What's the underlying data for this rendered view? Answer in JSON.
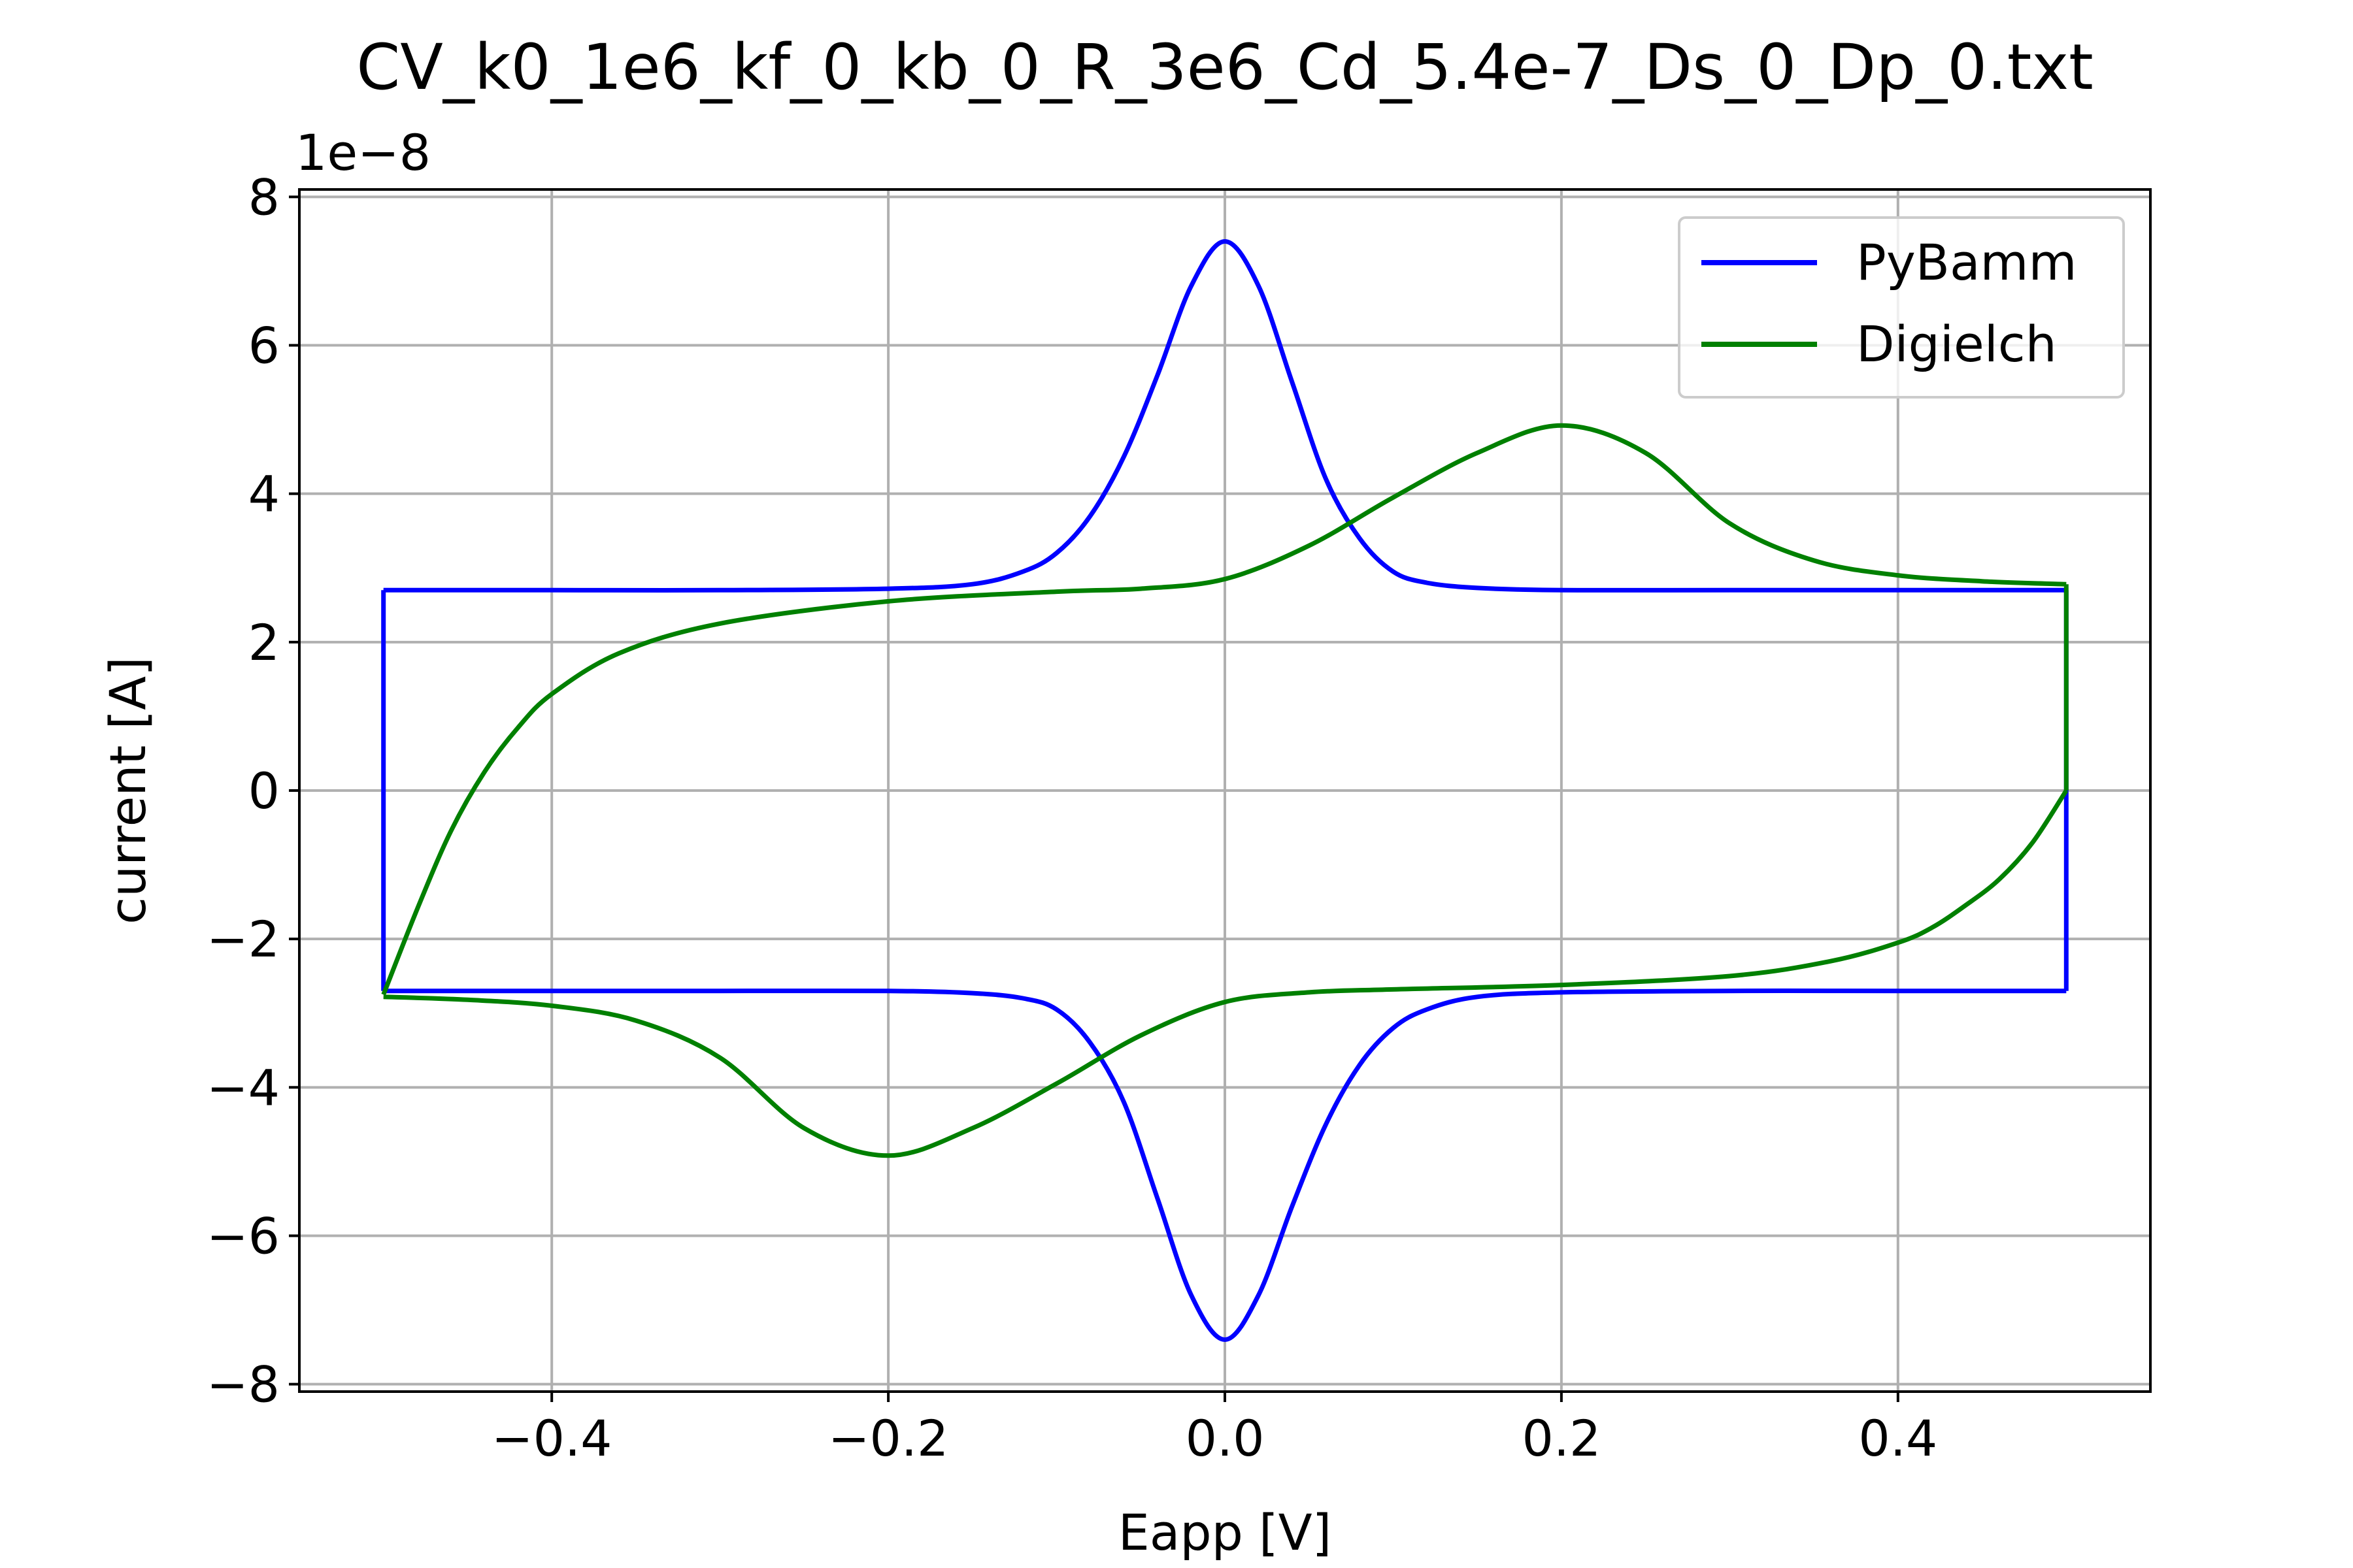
{
  "chart_data": {
    "type": "line",
    "title": "CV_k0_1e6_kf_0_kb_0_R_3e6_Cd_5.4e-7_Ds_0_Dp_0.txt",
    "xlabel": "Eapp [V]",
    "ylabel": "current [A]",
    "y_offset_label": "1e−8",
    "y_scale": 1e-08,
    "xlim": [
      -0.55,
      0.55
    ],
    "ylim": [
      -8.1,
      8.1
    ],
    "xticks": [
      -0.4,
      -0.2,
      0.0,
      0.2,
      0.4
    ],
    "xtick_labels": [
      "−0.4",
      "−0.2",
      "0.0",
      "0.2",
      "0.4"
    ],
    "yticks": [
      -8,
      -6,
      -4,
      -2,
      0,
      2,
      4,
      6,
      8
    ],
    "ytick_labels": [
      "−8",
      "−6",
      "−4",
      "−2",
      "0",
      "2",
      "4",
      "6",
      "8"
    ],
    "grid": true,
    "legend_position": "upper right",
    "series": [
      {
        "name": "PyBamm",
        "color": "#0000ff",
        "x": [
          -0.5,
          -0.5,
          -0.4,
          -0.3,
          -0.2,
          -0.15,
          -0.12,
          -0.1,
          -0.08,
          -0.06,
          -0.04,
          -0.02,
          0.0,
          0.02,
          0.04,
          0.06,
          0.08,
          0.1,
          0.12,
          0.15,
          0.2,
          0.3,
          0.4,
          0.5,
          0.5,
          0.4,
          0.3,
          0.2,
          0.15,
          0.12,
          0.1,
          0.08,
          0.06,
          0.04,
          0.02,
          0.0,
          -0.02,
          -0.04,
          -0.06,
          -0.08,
          -0.1,
          -0.12,
          -0.15,
          -0.2,
          -0.3,
          -0.4,
          -0.5
        ],
        "y": [
          -2.7,
          2.7,
          2.7,
          2.7,
          2.72,
          2.78,
          2.95,
          3.2,
          3.7,
          4.5,
          5.6,
          6.8,
          7.4,
          6.8,
          5.5,
          4.2,
          3.4,
          2.95,
          2.8,
          2.73,
          2.7,
          2.7,
          2.7,
          2.7,
          -2.7,
          -2.7,
          -2.7,
          -2.72,
          -2.78,
          -2.95,
          -3.2,
          -3.7,
          -4.5,
          -5.6,
          -6.8,
          -7.4,
          -6.8,
          -5.5,
          -4.2,
          -3.4,
          -2.95,
          -2.8,
          -2.73,
          -2.7,
          -2.7,
          -2.7,
          -2.7
        ]
      },
      {
        "name": "Digielch",
        "color": "#008000",
        "x": [
          -0.5,
          -0.48,
          -0.46,
          -0.44,
          -0.42,
          -0.4,
          -0.36,
          -0.3,
          -0.2,
          -0.1,
          -0.05,
          0.0,
          0.05,
          0.1,
          0.15,
          0.2,
          0.25,
          0.3,
          0.35,
          0.4,
          0.45,
          0.5,
          0.5,
          0.48,
          0.46,
          0.44,
          0.42,
          0.4,
          0.36,
          0.3,
          0.2,
          0.1,
          0.05,
          0.0,
          -0.05,
          -0.1,
          -0.15,
          -0.2,
          -0.25,
          -0.3,
          -0.35,
          -0.4,
          -0.45,
          -0.5
        ],
        "y": [
          -2.75,
          -1.6,
          -0.55,
          0.25,
          0.85,
          1.3,
          1.85,
          2.25,
          2.55,
          2.68,
          2.72,
          2.85,
          3.3,
          3.95,
          4.55,
          4.92,
          4.55,
          3.6,
          3.1,
          2.9,
          2.82,
          2.78,
          0.0,
          -0.7,
          -1.2,
          -1.55,
          -1.85,
          -2.05,
          -2.3,
          -2.5,
          -2.62,
          -2.68,
          -2.72,
          -2.85,
          -3.3,
          -3.95,
          -4.55,
          -4.92,
          -4.55,
          -3.6,
          -3.1,
          -2.9,
          -2.82,
          -2.78
        ]
      }
    ]
  }
}
